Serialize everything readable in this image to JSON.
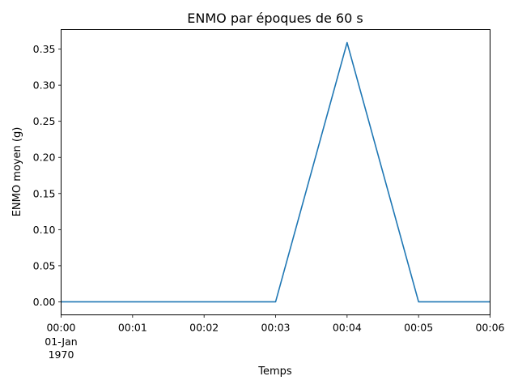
{
  "chart_data": {
    "type": "line",
    "title": "ENMO par époques de 60 s",
    "xlabel": "Temps",
    "ylabel": "ENMO moyen (g)",
    "x": [
      "00:00",
      "00:01",
      "00:02",
      "00:03",
      "00:04",
      "00:05",
      "00:06"
    ],
    "x_ticks": [
      "00:00",
      "00:01",
      "00:02",
      "00:03",
      "00:04",
      "00:05",
      "00:06"
    ],
    "x_date_label": [
      "01-Jan",
      "1970"
    ],
    "series": [
      {
        "values": [
          0.0,
          0.0,
          0.0,
          0.0,
          0.359,
          0.0,
          0.0
        ],
        "color": "#1f77b4"
      }
    ],
    "y_ticks": [
      "0.00",
      "0.05",
      "0.10",
      "0.15",
      "0.20",
      "0.25",
      "0.30",
      "0.35"
    ],
    "ylim": [
      -0.018,
      0.377
    ],
    "xlim": [
      "00:00",
      "00:06"
    ],
    "grid": false,
    "legend": "none"
  }
}
